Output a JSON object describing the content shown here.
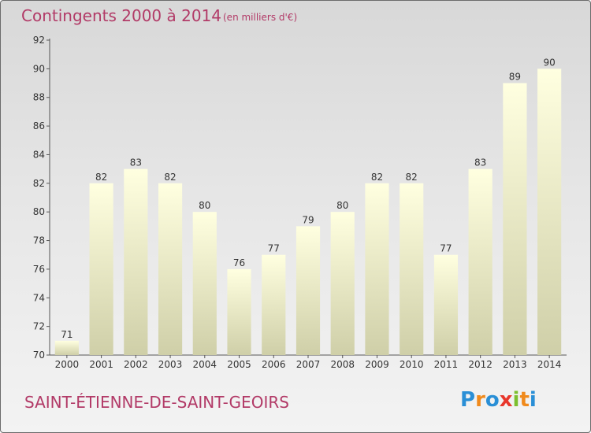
{
  "chart_data": {
    "type": "bar",
    "title": "Contingents 2000 à 2014",
    "subtitle": "(en milliers d'€)",
    "categories": [
      "2000",
      "2001",
      "2002",
      "2003",
      "2004",
      "2005",
      "2006",
      "2007",
      "2008",
      "2009",
      "2010",
      "2011",
      "2012",
      "2013",
      "2014"
    ],
    "values": [
      71,
      82,
      83,
      82,
      80,
      76,
      77,
      79,
      80,
      82,
      82,
      77,
      83,
      89,
      90
    ],
    "ylim": [
      70,
      92
    ],
    "yticks": [
      70,
      72,
      74,
      76,
      78,
      80,
      82,
      84,
      86,
      88,
      90,
      92
    ],
    "grid": false,
    "colors": {
      "bar_top": "#ffffe0",
      "bar_bottom": "#cfcfa8",
      "title": "#b23a67"
    }
  },
  "footer": {
    "commune": "SAINT-ÉTIENNE-DE-SAINT-GEOIRS"
  },
  "logo": {
    "text": "Proxiti",
    "letters": [
      {
        "ch": "P",
        "color": "#2a8fd6"
      },
      {
        "ch": "r",
        "color": "#f08a1c"
      },
      {
        "ch": "o",
        "color": "#2a8fd6"
      },
      {
        "ch": "x",
        "color": "#e8372c"
      },
      {
        "ch": "i",
        "color": "#7cbf2f"
      },
      {
        "ch": "t",
        "color": "#f08a1c"
      },
      {
        "ch": "i",
        "color": "#2a8fd6"
      }
    ]
  }
}
